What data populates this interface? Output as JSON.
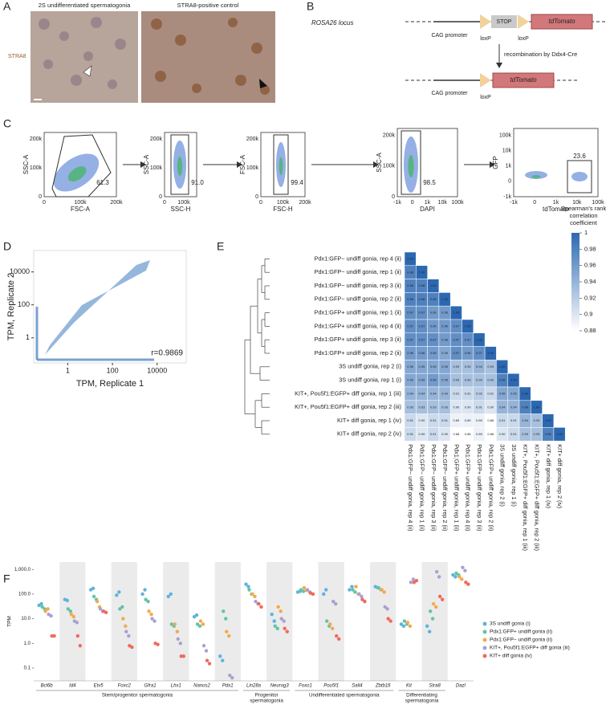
{
  "panel_labels": [
    "A",
    "B",
    "C",
    "D",
    "E",
    "F"
  ],
  "panel_a": {
    "image_titles": [
      "2S undifferentiated spermatogonia",
      "STRA8-positive control"
    ],
    "stain_label": "STRA8"
  },
  "panel_b": {
    "locus": "ROSA26 locus",
    "promoter": "CAG promoter",
    "stop": "STOP",
    "loxp": "loxP",
    "reporter": "tdTomato",
    "recombination": "recombination by Ddx4-Cre"
  },
  "panel_c": {
    "plots": [
      {
        "xlabel": "FSC-A",
        "ylabel": "SSC-A",
        "xtick_labels": [
          "0",
          "100k",
          "200k"
        ],
        "ytick_labels": [
          "0",
          "100k",
          "200k"
        ],
        "gate_label": "61.3"
      },
      {
        "xlabel": "SSC-H",
        "ylabel": "SSC-A",
        "xtick_labels": [
          "0",
          "100k"
        ],
        "ytick_labels": [
          "0",
          "100k",
          "200k"
        ],
        "gate_label": "91.0"
      },
      {
        "xlabel": "FSC-H",
        "ylabel": "FSC-A",
        "xtick_labels": [
          "0",
          "100k",
          "200k"
        ],
        "ytick_labels": [
          "0",
          "100k",
          "200k"
        ],
        "gate_label": "99.4"
      },
      {
        "xlabel": "DAPI",
        "ylabel": "SSC-A",
        "xtick_labels": [
          "-1k",
          "0",
          "1k",
          "10k",
          "100k"
        ],
        "ytick_labels": [
          "0",
          "100k",
          "200k"
        ],
        "gate_label": "98.5"
      },
      {
        "xlabel": "tdTomato",
        "ylabel": "GFP",
        "xtick_labels": [
          "-1k",
          "0",
          "1k",
          "10k",
          "100k"
        ],
        "ytick_labels": [
          "-1k",
          "0",
          "1k",
          "10k",
          "100k"
        ],
        "gate_label": "23.6"
      }
    ]
  },
  "chart_data": [
    {
      "type": "density-scatter",
      "xlabel": "TPM, Replicate 1",
      "ylabel": "TPM, Replicate 2",
      "annotation": "r=0.9869",
      "log_x": true,
      "log_y": true,
      "xlim": [
        0.03,
        200000
      ],
      "ylim": [
        0.03,
        200000
      ],
      "xticks": [
        1,
        100,
        10000
      ],
      "yticks": [
        1,
        100,
        10000
      ],
      "color": "#3f7cc0"
    },
    {
      "type": "heatmap",
      "row_labels": [
        "Pdx1:GFP− undiff gonia, rep 4 (ii)",
        "Pdx1:GFP− undiff gonia, rep 1 (ii)",
        "Pdx1:GFP− undiff gonia, rep 3 (ii)",
        "Pdx1:GFP− undiff gonia, rep 2 (ii)",
        "Pdx1:GFP+ undiff gonia, rep 1 (ii)",
        "Pdx1:GFP+ undiff gonia, rep 4 (ii)",
        "Pdx1:GFP+ undiff gonia, rep 3 (ii)",
        "Pdx1:GFP+ undiff gonia, rep 2 (ii)",
        "3S undiff gonia, rep 2 (i)",
        "3S undiff gonia, rep 1 (i)",
        "KIT+, Pou5f1:EGFP+ diff gonia, rep 1 (iii)",
        "KIT+, Pou5f1:EGFP+ diff gonia, rep 2 (iii)",
        "KIT+ diff gonia, rep 1 (iv)",
        "KIT+ diff gonia, rep 2 (iv)"
      ],
      "column_labels": [
        "Pdx1:GFP− undiff gonia, rep 4 (ii)",
        "Pdx1:GFP− undiff gonia, rep 1 (ii)",
        "Pdx1:GFP− undiff gonia, rep 3 (ii)",
        "Pdx1:GFP− undiff gonia, rep 2 (ii)",
        "Pdx1:GFP+ undiff gonia, rep 1 (ii)",
        "Pdx1:GFP+ undiff gonia, rep 4 (ii)",
        "Pdx1:GFP+ undiff gonia, rep 3 (ii)",
        "Pdx1:GFP+ undiff gonia, rep 2 (ii)",
        "3S undiff gonia, rep 2 (i)",
        "3S undiff gonia, rep 1 (i)",
        "KIT+, Pou5f1:EGFP+ diff gonia, rep 1 (iii)",
        "KIT+, Pou5f1:EGFP+ diff gonia, rep 2 (iii)",
        "KIT+ diff gonia, rep 1 (iv)",
        "KIT+ diff gonia, rep 2 (iv)"
      ],
      "values": [
        [
          1
        ],
        [
          0.98,
          1
        ],
        [
          0.98,
          0.98,
          1
        ],
        [
          0.98,
          0.98,
          0.98,
          1
        ],
        [
          0.97,
          0.97,
          0.96,
          0.96,
          1
        ],
        [
          0.97,
          0.97,
          0.96,
          0.96,
          0.97,
          1
        ],
        [
          0.97,
          0.97,
          0.97,
          0.96,
          0.97,
          0.97,
          1
        ],
        [
          0.96,
          0.96,
          0.96,
          0.95,
          0.97,
          0.96,
          0.97,
          1
        ],
        [
          0.95,
          0.95,
          0.95,
          0.95,
          0.93,
          0.93,
          0.94,
          0.93,
          1
        ],
        [
          0.95,
          0.95,
          0.96,
          0.95,
          0.93,
          0.93,
          0.93,
          0.93,
          0.98,
          1
        ],
        [
          0.94,
          0.94,
          0.94,
          0.94,
          0.91,
          0.91,
          0.92,
          0.91,
          0.95,
          0.95,
          1
        ],
        [
          0.93,
          0.93,
          0.93,
          0.93,
          0.9,
          0.9,
          0.91,
          0.9,
          0.94,
          0.94,
          0.98,
          1
        ],
        [
          0.91,
          0.9,
          0.91,
          0.91,
          0.89,
          0.89,
          0.89,
          0.88,
          0.91,
          0.91,
          0.94,
          0.93,
          1
        ],
        [
          0.91,
          0.9,
          0.91,
          0.9,
          0.88,
          0.88,
          0.89,
          0.88,
          0.9,
          0.91,
          0.93,
          0.93,
          0.98,
          1
        ]
      ],
      "value_labels": [
        [
          "1.00"
        ],
        [
          "0.98",
          "1.00"
        ],
        [
          "0.98",
          "0.98",
          "1.00"
        ],
        [
          "0.98",
          "0.98",
          "0.98",
          "1.00"
        ],
        [
          "0.97",
          "0.97",
          "0.96",
          "0.96",
          "1.00"
        ],
        [
          "0.97",
          "0.97",
          "0.96",
          "0.96",
          "0.97",
          "1.00"
        ],
        [
          "0.97",
          "0.97",
          "0.97",
          "0.96",
          "0.97",
          "0.97",
          "1.00"
        ],
        [
          "0.96",
          "0.96",
          "0.96",
          "0.95",
          "0.97",
          "0.96",
          "0.97",
          "1.00"
        ],
        [
          "0.95",
          "0.95",
          "0.95",
          "0.95",
          "0.93",
          "0.93",
          "0.94",
          "0.93",
          "1.00"
        ],
        [
          "0.95",
          "0.95",
          "0.96",
          "0.95",
          "0.93",
          "0.93",
          "0.93",
          "0.93",
          "0.98",
          "1.00"
        ],
        [
          "0.94",
          "0.94",
          "0.94",
          "0.94",
          "0.91",
          "0.91",
          "0.92",
          "0.91",
          "0.95",
          "0.95",
          "1.00"
        ],
        [
          "0.93",
          "0.93",
          "0.93",
          "0.93",
          "0.90",
          "0.90",
          "0.91",
          "0.90",
          "0.94",
          "0.94",
          "0.98",
          "1.00"
        ],
        [
          "0.91",
          "0.90",
          "0.91",
          "0.91",
          "0.89",
          "0.89",
          "0.89",
          "0.88",
          "0.91",
          "0.91",
          "0.94",
          "0.93",
          "1.00"
        ],
        [
          "0.91",
          "0.90",
          "0.91",
          "0.90",
          "0.88",
          "0.88",
          "0.89",
          "0.88",
          "0.90",
          "0.91",
          "0.93",
          "0.93",
          "0.98",
          "1.00"
        ]
      ],
      "colorbar_title": [
        "Spearman's rank",
        "correlation",
        "coefficient"
      ],
      "clim": [
        0.88,
        1
      ],
      "cticks": [
        1,
        0.98,
        0.96,
        0.94,
        0.92,
        0.9,
        0.88
      ],
      "color_low": "#ffffff",
      "color_high": "#2c68b1"
    },
    {
      "type": "dot",
      "ylabel": "TPM",
      "log_y": true,
      "ylim": [
        0.03,
        2000
      ],
      "yticks": [
        {
          "value": 0.1,
          "label": "0.1"
        },
        {
          "value": 1,
          "label": "1.0"
        },
        {
          "value": 10,
          "label": "10.0"
        },
        {
          "value": 100,
          "label": "100.0"
        },
        {
          "value": 1000,
          "label": "1,000.0"
        }
      ],
      "groups": [
        {
          "label": "Stem/progenitor spermatogonia",
          "categories": [
            "Bcl6b",
            "Id4",
            "Etv5",
            "Foxc2",
            "Gfra1",
            "Lhx1",
            "Nanos2",
            "Pdx1"
          ]
        },
        {
          "label": [
            "Progenitor",
            "spermatogonia"
          ],
          "categories": [
            "Lin28a",
            "Neurog3"
          ]
        },
        {
          "label": "Undifferentiated spermatogonia",
          "categories": [
            "Foxo1",
            "Pou5f1",
            "Sall4",
            "Zbtb16"
          ]
        },
        {
          "label": [
            "Differentiating",
            "spermatogonia"
          ],
          "categories": [
            "Kit",
            "Stra8"
          ]
        },
        {
          "label": null,
          "categories": [
            "Dazl"
          ]
        }
      ],
      "series": [
        {
          "name": "3S undiff gonia (i)",
          "color": "#5fb3dc",
          "values": [
            [
              35,
              40
            ],
            [
              60,
              55
            ],
            [
              150,
              170
            ],
            [
              90,
              120
            ],
            [
              100,
              150
            ],
            [
              80,
              100
            ],
            [
              12,
              14
            ],
            [
              0.3,
              0.2
            ],
            [
              250,
              200
            ],
            [
              15,
              8
            ],
            [
              120,
              130
            ],
            [
              100,
              150
            ],
            [
              150,
              200
            ],
            [
              200,
              180
            ],
            [
              6,
              5
            ],
            [
              5,
              3
            ],
            [
              600,
              500
            ]
          ]
        },
        {
          "name": "Pdx1:GFP+ undiff gonia (ii)",
          "color": "#62c4a8",
          "values": [
            [
              30,
              25
            ],
            [
              25,
              20
            ],
            [
              80,
              60
            ],
            [
              25,
              30
            ],
            [
              60,
              50
            ],
            [
              6,
              5
            ],
            [
              6,
              5
            ],
            [
              20,
              10
            ],
            [
              150,
              100
            ],
            [
              5,
              4
            ],
            [
              150,
              130
            ],
            [
              8,
              5
            ],
            [
              150,
              120
            ],
            [
              180,
              150
            ],
            [
              8,
              6
            ],
            [
              20,
              10
            ],
            [
              700,
              600
            ]
          ]
        },
        {
          "name": "Pdx1:GFP− undiff gonia (ii)",
          "color": "#f4a94a",
          "values": [
            [
              20,
              25
            ],
            [
              15,
              12
            ],
            [
              50,
              30
            ],
            [
              10,
              5
            ],
            [
              20,
              15
            ],
            [
              6,
              3
            ],
            [
              8,
              6
            ],
            [
              3,
              2
            ],
            [
              100,
              80
            ],
            [
              30,
              20
            ],
            [
              180,
              140
            ],
            [
              6,
              4
            ],
            [
              200,
              100
            ],
            [
              150,
              120
            ],
            [
              7,
              5
            ],
            [
              40,
              30
            ],
            [
              500,
              400
            ]
          ]
        },
        {
          "name": "KIT+, Pou5f1:EGFP+ diff gonia (iii)",
          "color": "#aaa0d2",
          "values": [
            [
              15,
              13
            ],
            [
              8,
              7
            ],
            [
              25,
              20
            ],
            [
              3,
              2
            ],
            [
              10,
              8
            ],
            [
              1.5,
              1
            ],
            [
              0.8,
              0.5
            ],
            [
              0.05,
              0.04
            ],
            [
              50,
              40
            ],
            [
              10,
              8
            ],
            [
              150,
              120
            ],
            [
              50,
              40
            ],
            [
              100,
              80
            ],
            [
              30,
              25
            ],
            [
              300,
              400
            ],
            [
              800,
              500
            ],
            [
              1200,
              900
            ]
          ]
        },
        {
          "name": "KIT+ diff gonia (iv)",
          "color": "#ef6a5a",
          "values": [
            [
              2,
              2
            ],
            [
              2,
              0.8
            ],
            [
              20,
              18
            ],
            [
              0.8,
              0.7
            ],
            [
              1,
              0.9
            ],
            [
              0.3,
              0.3
            ],
            [
              0.2,
              0.15
            ],
            [
              null,
              null
            ],
            [
              40,
              30
            ],
            [
              4,
              3
            ],
            [
              110,
              100
            ],
            [
              2,
              1.5
            ],
            [
              60,
              50
            ],
            [
              10,
              8
            ],
            [
              300,
              350
            ],
            [
              80,
              60
            ],
            [
              300,
              250
            ]
          ]
        }
      ]
    }
  ]
}
